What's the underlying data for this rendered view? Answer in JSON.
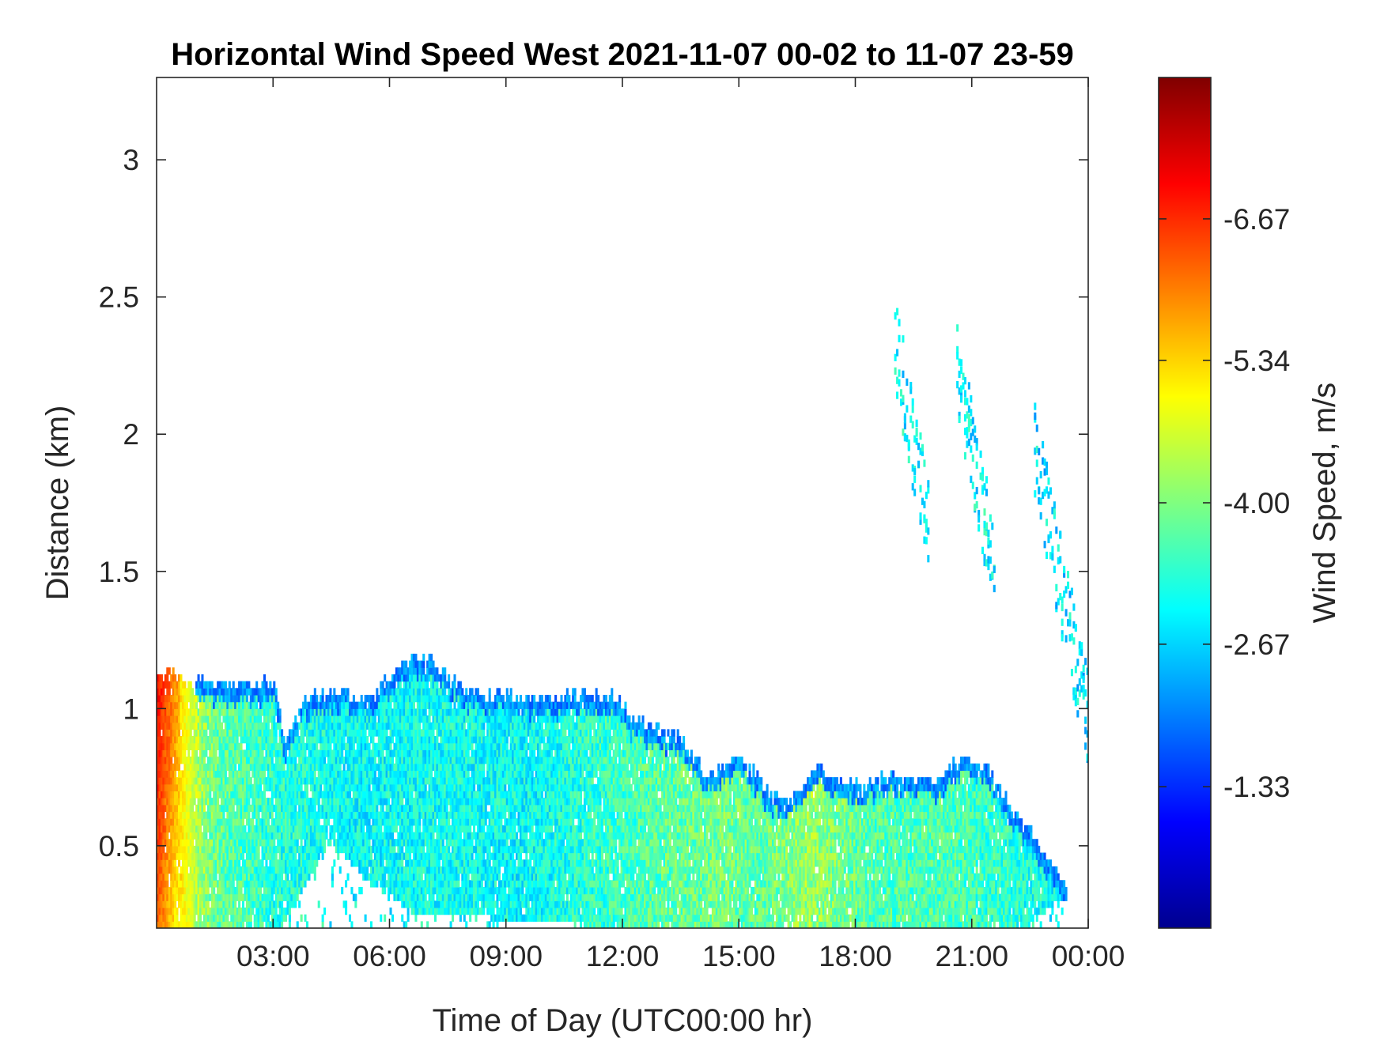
{
  "chart_data": {
    "type": "heatmap",
    "title": "Horizontal Wind Speed West 2021-11-07 00-02 to 11-07 23-59",
    "xlabel": "Time of Day (UTC00:00 hr)",
    "ylabel": "Distance (km)",
    "x_tick_labels": [
      "03:00",
      "06:00",
      "09:00",
      "12:00",
      "15:00",
      "18:00",
      "21:00",
      "00:00"
    ],
    "x_tick_hours": [
      3,
      6,
      9,
      12,
      15,
      18,
      21,
      24
    ],
    "xlim_hours": [
      0,
      24
    ],
    "y_tick_labels": [
      "0.5",
      "1",
      "1.5",
      "2",
      "2.5",
      "3"
    ],
    "y_tick_values": [
      0.5,
      1,
      1.5,
      2,
      2.5,
      3
    ],
    "ylim_km": [
      0.2,
      3.3
    ],
    "colorbar": {
      "label": "Wind Speed, m/s",
      "colormap": "jet",
      "range": [
        0,
        -8
      ],
      "tick_labels": [
        "-6.67",
        "-5.34",
        "-4.00",
        "-2.67",
        "-1.33"
      ],
      "tick_values": [
        -6.67,
        -5.34,
        -4.0,
        -2.67,
        -1.33
      ]
    },
    "data_summary": {
      "low_layer_top_km": [
        [
          0.0,
          1.12
        ],
        [
          1.0,
          1.08
        ],
        [
          2.0,
          1.07
        ],
        [
          3.0,
          1.08
        ],
        [
          3.3,
          0.85
        ],
        [
          3.8,
          1.02
        ],
        [
          4.5,
          1.05
        ],
        [
          5.5,
          1.02
        ],
        [
          6.3,
          1.16
        ],
        [
          7.0,
          1.16
        ],
        [
          8.0,
          1.05
        ],
        [
          9.0,
          1.04
        ],
        [
          10.0,
          1.02
        ],
        [
          11.0,
          1.04
        ],
        [
          11.8,
          1.04
        ],
        [
          12.2,
          0.95
        ],
        [
          13.5,
          0.88
        ],
        [
          14.2,
          0.74
        ],
        [
          15.0,
          0.82
        ],
        [
          15.8,
          0.67
        ],
        [
          16.3,
          0.66
        ],
        [
          17.0,
          0.78
        ],
        [
          17.5,
          0.72
        ],
        [
          18.5,
          0.72
        ],
        [
          19.0,
          0.75
        ],
        [
          20.0,
          0.72
        ],
        [
          20.8,
          0.82
        ],
        [
          21.5,
          0.76
        ],
        [
          22.0,
          0.62
        ],
        [
          23.0,
          0.44
        ],
        [
          23.3,
          0.36
        ]
      ],
      "low_layer_bottom_km": [
        [
          0.0,
          0.2
        ],
        [
          3.2,
          0.2
        ],
        [
          3.6,
          0.3
        ],
        [
          4.5,
          0.5
        ],
        [
          5.5,
          0.35
        ],
        [
          6.5,
          0.25
        ],
        [
          9.0,
          0.22
        ],
        [
          11.0,
          0.2
        ],
        [
          13.0,
          0.2
        ],
        [
          22.5,
          0.2
        ],
        [
          23.3,
          0.3
        ]
      ],
      "mean_speed_ms": [
        [
          0.0,
          -5.8
        ],
        [
          0.5,
          -5.0
        ],
        [
          1.5,
          -3.8
        ],
        [
          3.0,
          -3.3
        ],
        [
          5.0,
          -3.0
        ],
        [
          7.5,
          -3.1
        ],
        [
          9.5,
          -3.0
        ],
        [
          11.5,
          -3.4
        ],
        [
          13.0,
          -3.7
        ],
        [
          14.5,
          -3.9
        ],
        [
          15.5,
          -3.7
        ],
        [
          16.8,
          -4.2
        ],
        [
          18.5,
          -3.6
        ],
        [
          20.5,
          -3.6
        ],
        [
          22.0,
          -3.3
        ],
        [
          23.3,
          -3.0
        ]
      ],
      "upper_plumes": [
        {
          "x_start": 19.0,
          "x_end": 19.9,
          "y_top": 2.25,
          "y_bottom": 1.55,
          "speed_ms": -3.0
        },
        {
          "x_start": 20.6,
          "x_end": 21.6,
          "y_top": 2.15,
          "y_bottom": 1.4,
          "speed_ms": -3.0
        },
        {
          "x_start": 22.6,
          "x_end": 24.0,
          "y_top": 1.85,
          "y_bottom": 0.85,
          "speed_ms": -2.8
        }
      ]
    }
  }
}
